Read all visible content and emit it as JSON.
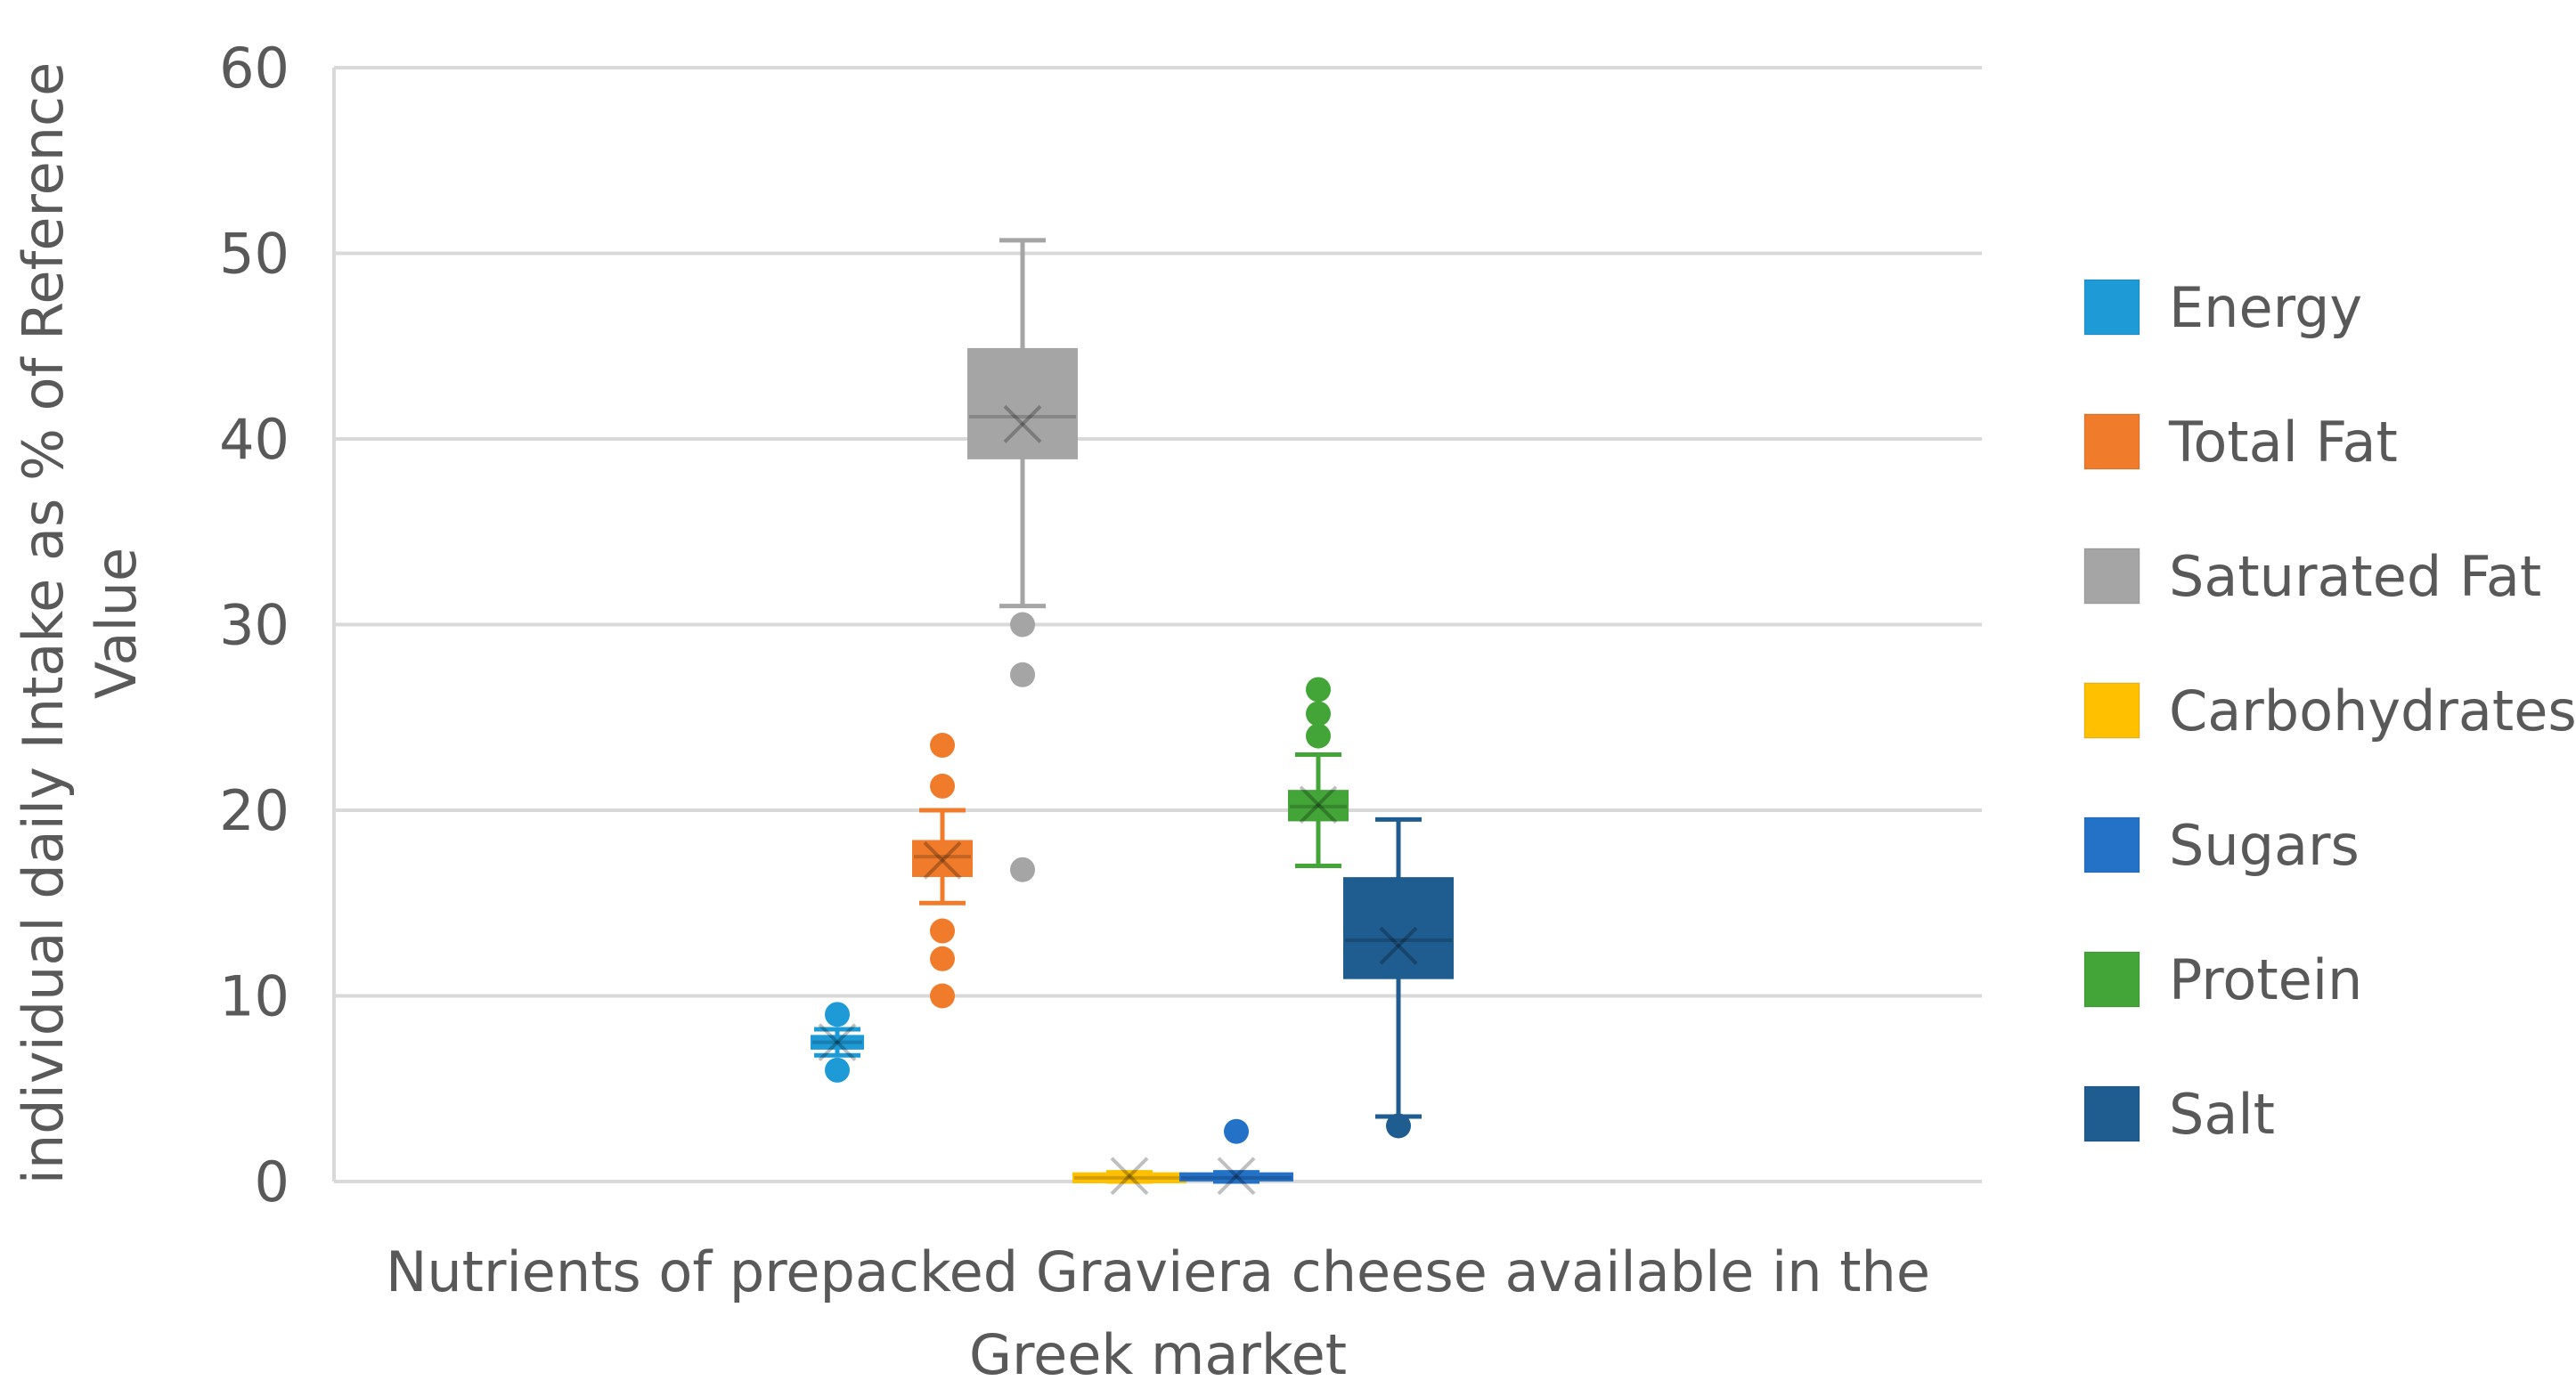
{
  "chart_data": {
    "type": "boxplot",
    "title": "",
    "xlabel_lines": [
      "Nutrients of prepacked Graviera cheese available in the",
      "Greek market"
    ],
    "ylabel_lines": [
      "individual daily Intake as % of Reference",
      "Value"
    ],
    "ylim": [
      0,
      60
    ],
    "yticks": [
      "0",
      "10",
      "20",
      "30",
      "40",
      "50",
      "60"
    ],
    "grid": true,
    "legend_position": "right",
    "series": [
      {
        "name": "Energy",
        "color": "#1E9BD7",
        "min": 6.8,
        "q1": 7.2,
        "median": 7.5,
        "q3": 7.8,
        "max": 8.2,
        "mean": 7.5,
        "outliers": [
          9.0,
          6.0
        ]
      },
      {
        "name": "Total Fat",
        "color": "#F07B2A",
        "min": 15.0,
        "q1": 16.5,
        "median": 17.5,
        "q3": 18.3,
        "max": 20.0,
        "mean": 17.3,
        "outliers": [
          23.5,
          21.3,
          13.5,
          12.0,
          10.0
        ]
      },
      {
        "name": "Saturated Fat",
        "color": "#A5A5A5",
        "min": 31.0,
        "q1": 39.0,
        "median": 41.2,
        "q3": 44.8,
        "max": 50.7,
        "mean": 40.8,
        "outliers": [
          30.0,
          27.3,
          16.8
        ]
      },
      {
        "name": "Carbohydrates",
        "color": "#FFC000",
        "min": 0.0,
        "q1": 0.0,
        "median": 0.2,
        "q3": 0.4,
        "max": 0.5,
        "mean": 0.3,
        "outliers": []
      },
      {
        "name": "Sugars",
        "color": "#2472C8",
        "min": 0.0,
        "q1": 0.1,
        "median": 0.2,
        "q3": 0.4,
        "max": 0.5,
        "mean": 0.3,
        "outliers": [
          2.7
        ]
      },
      {
        "name": "Protein",
        "color": "#43A538",
        "min": 17.0,
        "q1": 19.5,
        "median": 20.2,
        "q3": 21.0,
        "max": 23.0,
        "mean": 20.3,
        "outliers": [
          26.5,
          25.2,
          24.0
        ]
      },
      {
        "name": "Salt",
        "color": "#1F5C8F",
        "min": 3.5,
        "q1": 11.0,
        "median": 13.0,
        "q3": 16.3,
        "max": 19.5,
        "mean": 12.7,
        "outliers": [
          3.0
        ]
      }
    ]
  }
}
